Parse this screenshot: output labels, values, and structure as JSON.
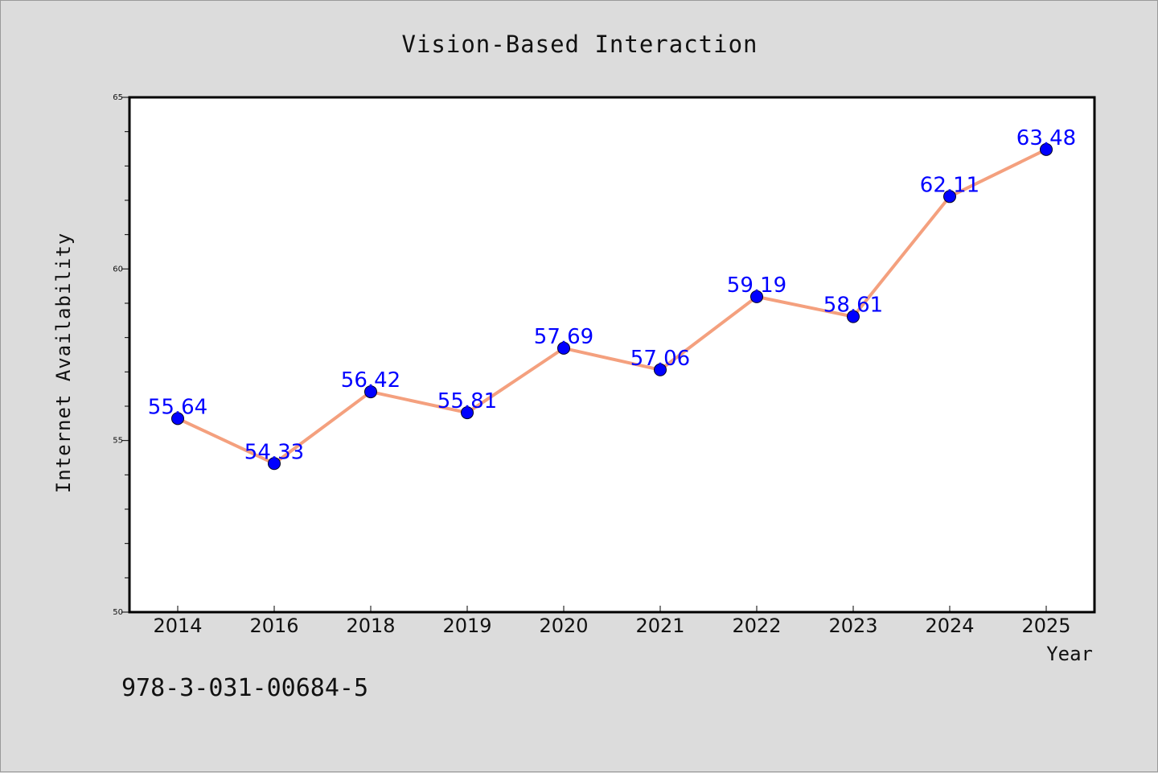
{
  "chart_data": {
    "type": "line",
    "title": "Vision-Based Interaction",
    "xlabel": "Year",
    "ylabel": "Internet Availability",
    "categories": [
      "2014",
      "2016",
      "2018",
      "2019",
      "2020",
      "2021",
      "2022",
      "2023",
      "2024",
      "2025"
    ],
    "series": [
      {
        "values": [
          55.64,
          54.33,
          56.42,
          55.81,
          57.69,
          57.06,
          59.19,
          58.61,
          62.11,
          63.48
        ],
        "value_labels": [
          "55.64",
          "54.33",
          "56.42",
          "55.81",
          "57.69",
          "57.06",
          "59.19",
          "58.61",
          "62.11",
          "63.48"
        ]
      }
    ],
    "ylim": [
      50,
      65
    ],
    "yticks": [
      50,
      55,
      60,
      65
    ],
    "ytick_labels": [
      "50",
      "55",
      "60",
      "65"
    ],
    "grid": false,
    "legend": "none",
    "colors": {
      "line": "#f4a07e",
      "marker": "#0000ff",
      "data_label": "#0000ff",
      "plot_background": "#ffffff",
      "figure_background": "#dcdcdc"
    }
  },
  "annotations": {
    "isbn": "978-3-031-00684-5"
  }
}
